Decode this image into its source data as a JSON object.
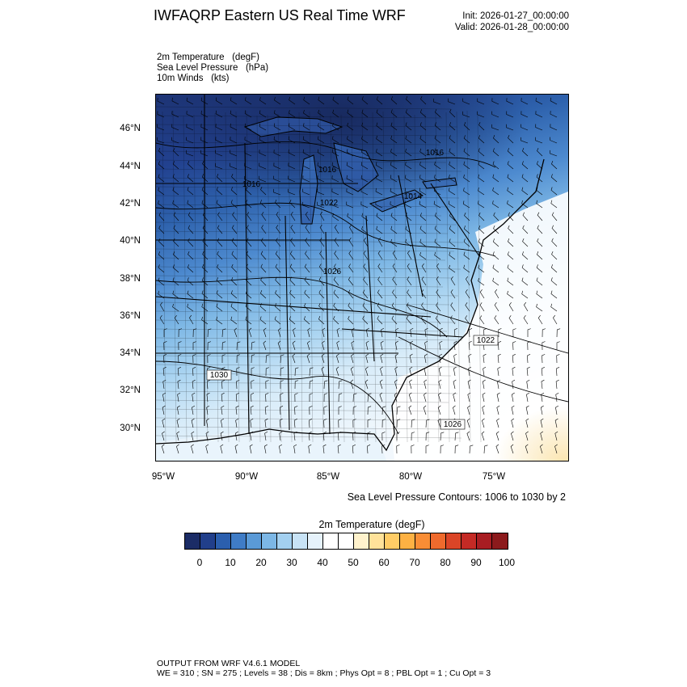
{
  "header": {
    "title": "IWFAQRP Eastern US Real Time WRF",
    "init": "Init: 2026-01-27_00:00:00",
    "valid": "Valid: 2026-01-28_00:00:00"
  },
  "fields": {
    "line1": "2m Temperature   (degF)",
    "line2": "Sea Level Pressure   (hPa)",
    "line3": "10m Winds   (kts)"
  },
  "map": {
    "lat_labels": [
      "46°N",
      "44°N",
      "42°N",
      "40°N",
      "38°N",
      "36°N",
      "34°N",
      "32°N",
      "30°N"
    ],
    "lon_labels": [
      "95°W",
      "90°W",
      "85°W",
      "80°W",
      "75°W"
    ],
    "pressure_labels": [
      "1016",
      "1016",
      "1022",
      "1014",
      "1016",
      "1026",
      "1022",
      "1030",
      "1026"
    ],
    "contour_note": "Sea Level Pressure Contours: 1006 to 1030 by 2"
  },
  "colorbar": {
    "title": "2m Temperature  (degF)",
    "ticks": [
      "0",
      "10",
      "20",
      "30",
      "40",
      "50",
      "60",
      "70",
      "80",
      "90",
      "100"
    ],
    "colors": [
      "#1b2c66",
      "#213f8b",
      "#2b5fae",
      "#3f7cc6",
      "#5a9ad7",
      "#7cb7e6",
      "#a3d0f0",
      "#c8e3f6",
      "#e6f2fb",
      "#ffffff",
      "#ffffff",
      "#fff2cc",
      "#ffe29a",
      "#ffcc66",
      "#fdb143",
      "#f98d35",
      "#ef6a2d",
      "#db4527",
      "#c42a25",
      "#a81d22",
      "#8c1a1c"
    ]
  },
  "footer": {
    "line1": "OUTPUT FROM WRF V4.6.1 MODEL",
    "line2": "WE = 310 ; SN = 275 ; Levels = 38 ; Dis = 8km ; Phys Opt = 8 ; PBL Opt = 1 ; Cu Opt = 3"
  }
}
